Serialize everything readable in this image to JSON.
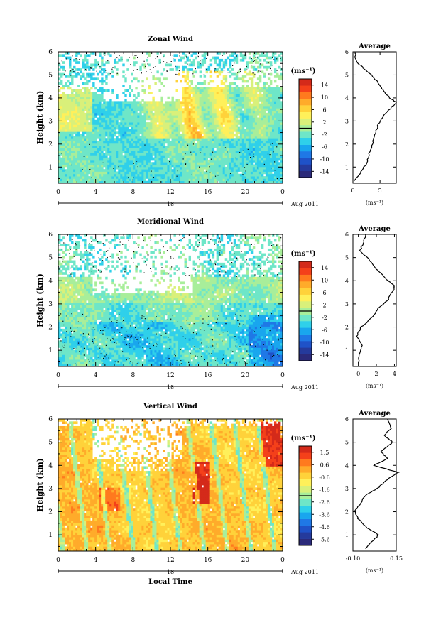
{
  "panels": [
    {
      "title": "Zonal Wind",
      "unit_label": "(ms⁻¹)",
      "y_label": "Height (km)",
      "x_ticks": [
        "0",
        "4",
        "8",
        "12",
        "16",
        "20",
        "0"
      ],
      "y_ticks": [
        "1",
        "2",
        "3",
        "4",
        "5",
        "6"
      ],
      "day_label": "18",
      "date_label": "Aug 2011",
      "colorbar_ticks": [
        "14",
        "10",
        "6",
        "2",
        "-2",
        "-6",
        "-10",
        "-14"
      ],
      "range": [
        -14,
        14
      ],
      "avg_title": "Average",
      "avg_x_ticks": [
        "0",
        "5"
      ],
      "avg_unit": "(ms⁻¹)"
    },
    {
      "title": "Meridional Wind",
      "unit_label": "(ms⁻¹)",
      "y_label": "Height (km)",
      "x_ticks": [
        "0",
        "4",
        "8",
        "12",
        "16",
        "20",
        "0"
      ],
      "y_ticks": [
        "1",
        "2",
        "3",
        "4",
        "5",
        "6"
      ],
      "day_label": "18",
      "date_label": "Aug 2011",
      "colorbar_ticks": [
        "14",
        "10",
        "6",
        "2",
        "-2",
        "-6",
        "-10",
        "-14"
      ],
      "range": [
        -14,
        14
      ],
      "avg_title": "Average",
      "avg_x_ticks": [
        "0",
        "2",
        "4"
      ],
      "avg_unit": "(ms⁻¹)"
    },
    {
      "title": "Vertical Wind",
      "unit_label": "(ms⁻¹)",
      "y_label": "Height (km)",
      "x_ticks": [
        "0",
        "4",
        "8",
        "12",
        "16",
        "20",
        "0"
      ],
      "y_ticks": [
        "1",
        "2",
        "3",
        "4",
        "5",
        "6"
      ],
      "day_label": "18",
      "date_label": "Aug 2011",
      "x_title": "Local Time",
      "colorbar_ticks": [
        "1.5",
        "0.6",
        "-0.6",
        "-1.6",
        "-2.6",
        "-3.6",
        "-4.6",
        "-5.6"
      ],
      "range": [
        -5.6,
        1.5
      ],
      "avg_title": "Average",
      "avg_x_ticks": [
        "-0.10",
        "0.15"
      ],
      "avg_unit": "(ms⁻¹)"
    }
  ],
  "chart_data": [
    {
      "type": "heatmap",
      "title": "Zonal Wind",
      "xlabel": "",
      "ylabel": "Height (km)",
      "xlim_hours": [
        0,
        24
      ],
      "ylim_km": [
        0.3,
        6
      ],
      "color_range": [
        -14,
        14
      ],
      "average_profile": {
        "title": "Average",
        "xlim": [
          0,
          8
        ],
        "heights_km": [
          0.4,
          0.8,
          1.2,
          1.6,
          2.0,
          2.4,
          2.8,
          3.2,
          3.6,
          3.8,
          4.0,
          4.3,
          4.6,
          5.0,
          5.3,
          5.6,
          6.0
        ],
        "values": [
          0.3,
          1.5,
          2.6,
          3.0,
          3.6,
          4.0,
          4.6,
          5.6,
          7.2,
          8.0,
          6.8,
          5.6,
          4.9,
          3.4,
          1.9,
          0.6,
          0.4
        ]
      }
    },
    {
      "type": "heatmap",
      "title": "Meridional Wind",
      "xlabel": "",
      "ylabel": "Height (km)",
      "xlim_hours": [
        0,
        24
      ],
      "ylim_km": [
        0.3,
        6
      ],
      "color_range": [
        -14,
        14
      ],
      "average_profile": {
        "title": "Average",
        "xlim": [
          -0.6,
          4.2
        ],
        "heights_km": [
          0.4,
          0.8,
          1.2,
          1.6,
          2.0,
          2.4,
          2.8,
          3.2,
          3.6,
          3.8,
          4.0,
          4.3,
          4.6,
          5.0,
          5.3,
          5.6,
          6.0
        ],
        "values": [
          0.0,
          0.1,
          0.4,
          -0.2,
          0.3,
          1.5,
          2.2,
          3.3,
          3.9,
          4.0,
          3.3,
          2.5,
          1.8,
          1.0,
          0.2,
          0.5,
          0.8
        ]
      }
    },
    {
      "type": "heatmap",
      "title": "Vertical Wind",
      "xlabel": "Local Time",
      "ylabel": "Height (km)",
      "xlim_hours": [
        0,
        24
      ],
      "ylim_km": [
        0.3,
        6
      ],
      "color_range": [
        -5.6,
        1.5
      ],
      "average_profile": {
        "title": "Average",
        "xlim": [
          -0.1,
          0.15
        ],
        "heights_km": [
          0.4,
          0.7,
          1.0,
          1.3,
          1.7,
          2.0,
          2.3,
          2.7,
          3.0,
          3.4,
          3.7,
          4.0,
          4.3,
          4.6,
          5.0,
          5.3,
          5.6,
          6.0
        ],
        "values": [
          -0.03,
          0.01,
          0.05,
          -0.02,
          -0.07,
          -0.09,
          -0.06,
          -0.03,
          0.04,
          0.1,
          0.16,
          0.02,
          0.1,
          0.06,
          0.13,
          0.08,
          0.12,
          0.1
        ]
      }
    }
  ]
}
